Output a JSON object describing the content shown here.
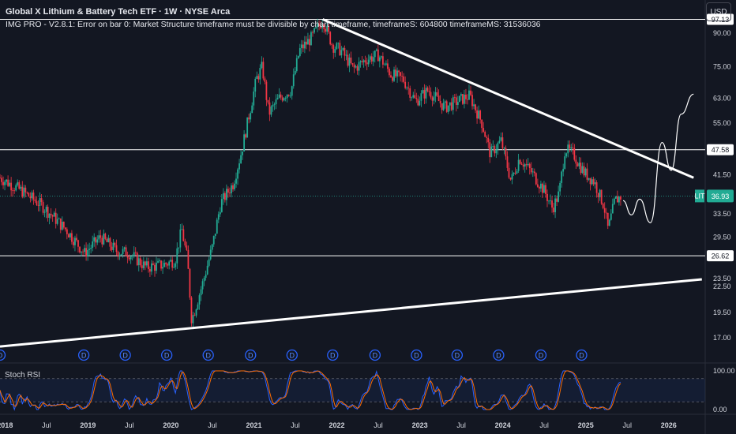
{
  "header": {
    "title": "Global X Lithium & Battery Tech ETF · 1W · NYSE Arca",
    "error": "IMG PRO - V2.8.1: Error on bar 0: Market Structure timeframe must be divisible by chart timeframe, timeframeS: 604800 timeframeMS: 31536036"
  },
  "currency_button": "USD",
  "stoch_label": "Stoch RSI",
  "chart_data": {
    "type": "candlestick",
    "symbol": "LIT",
    "interval": "1W",
    "exchange": "NYSE Arca",
    "price_axis": {
      "ticks": [
        "90.00",
        "75.00",
        "63.00",
        "55.00",
        "41.50",
        "33.50",
        "29.50",
        "23.50",
        "22.50",
        "19.50",
        "17.00"
      ],
      "tick_values": [
        90,
        75,
        63,
        55,
        41.5,
        33.5,
        29.5,
        23.5,
        22.5,
        19.5,
        17
      ],
      "scale": "log",
      "range": [
        14.8,
        108
      ]
    },
    "time_axis": {
      "labels": [
        "2018",
        "Jul",
        "2019",
        "Jul",
        "2020",
        "Jul",
        "2021",
        "Jul",
        "2022",
        "Jul",
        "2023",
        "Jul",
        "2024",
        "Jul",
        "2025",
        "Jul",
        "2026"
      ],
      "bold": [
        true,
        false,
        true,
        false,
        true,
        false,
        true,
        false,
        true,
        false,
        true,
        false,
        true,
        false,
        true,
        false,
        true
      ],
      "range": [
        2017.94,
        2026.44
      ]
    },
    "last_price": {
      "symbol": "LIT",
      "value": "36.93",
      "color": "#22ab94"
    },
    "horizontal_levels": [
      {
        "label": "97.13",
        "value": 97.13
      },
      {
        "label": "47.58",
        "value": 47.58
      },
      {
        "label": "26.62",
        "value": 26.62
      }
    ],
    "trendlines": [
      {
        "name": "resistance",
        "points": [
          [
            2021.83,
            97.13
          ],
          [
            2026.3,
            40.8
          ]
        ]
      },
      {
        "name": "support",
        "points": [
          [
            2017.94,
            16.2
          ],
          [
            2026.4,
            23.4
          ]
        ]
      }
    ],
    "projection_path": [
      [
        2025.45,
        36.0
      ],
      [
        2025.55,
        33.3
      ],
      [
        2025.65,
        36.3
      ],
      [
        2025.78,
        31.9
      ],
      [
        2025.92,
        49.5
      ],
      [
        2026.03,
        42.5
      ],
      [
        2026.15,
        57.8
      ],
      [
        2026.3,
        64.5
      ]
    ],
    "key_points": [
      [
        2017.94,
        40.8
      ],
      [
        2018.2,
        38.0
      ],
      [
        2018.45,
        35.0
      ],
      [
        2018.75,
        30.5
      ],
      [
        2018.96,
        27.0
      ],
      [
        2019.15,
        29.5
      ],
      [
        2019.35,
        27.3
      ],
      [
        2019.5,
        27.0
      ],
      [
        2019.7,
        25.0
      ],
      [
        2019.9,
        25.3
      ],
      [
        2020.05,
        26.0
      ],
      [
        2020.13,
        30.8
      ],
      [
        2020.2,
        26.0
      ],
      [
        2020.25,
        18.7
      ],
      [
        2020.38,
        22.8
      ],
      [
        2020.5,
        28.0
      ],
      [
        2020.6,
        35.5
      ],
      [
        2020.75,
        39.5
      ],
      [
        2020.85,
        47.0
      ],
      [
        2020.93,
        56.0
      ],
      [
        2021.03,
        70.0
      ],
      [
        2021.1,
        75.0
      ],
      [
        2021.18,
        58.0
      ],
      [
        2021.3,
        63.0
      ],
      [
        2021.45,
        66.0
      ],
      [
        2021.55,
        82.0
      ],
      [
        2021.7,
        88.0
      ],
      [
        2021.83,
        97.1
      ],
      [
        2021.95,
        84.0
      ],
      [
        2022.05,
        82.0
      ],
      [
        2022.2,
        74.0
      ],
      [
        2022.35,
        78.0
      ],
      [
        2022.5,
        80.0
      ],
      [
        2022.65,
        72.0
      ],
      [
        2022.8,
        70.0
      ],
      [
        2022.95,
        62.0
      ],
      [
        2023.1,
        66.0
      ],
      [
        2023.3,
        60.0
      ],
      [
        2023.45,
        62.0
      ],
      [
        2023.6,
        64.0
      ],
      [
        2023.75,
        55.0
      ],
      [
        2023.85,
        46.5
      ],
      [
        2023.98,
        50.0
      ],
      [
        2024.1,
        40.0
      ],
      [
        2024.2,
        45.5
      ],
      [
        2024.35,
        42.0
      ],
      [
        2024.5,
        38.0
      ],
      [
        2024.6,
        34.5
      ],
      [
        2024.68,
        37.5
      ],
      [
        2024.75,
        47.8
      ],
      [
        2024.85,
        46.5
      ],
      [
        2024.98,
        42.0
      ],
      [
        2025.1,
        40.0
      ],
      [
        2025.22,
        35.0
      ],
      [
        2025.27,
        30.7
      ],
      [
        2025.35,
        36.0
      ],
      [
        2025.43,
        36.9
      ]
    ],
    "dividend_markers": {
      "label": "D",
      "x": [
        2017.94,
        2018.95,
        2019.45,
        2019.95,
        2020.45,
        2020.96,
        2021.46,
        2021.95,
        2022.46,
        2022.96,
        2023.45,
        2023.95,
        2024.46,
        2024.95
      ]
    },
    "stoch_rsi": {
      "ticks": [
        "100.00",
        "0.00"
      ],
      "bands": [
        80,
        20
      ],
      "k_color": "#2962ff",
      "d_color": "#ff6d00"
    },
    "colors": {
      "up": "#22ab94",
      "down": "#f23645",
      "background": "#131722",
      "lines": "#ffffff"
    }
  }
}
